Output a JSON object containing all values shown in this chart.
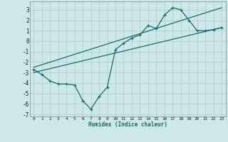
{
  "xlabel": "Humidex (Indice chaleur)",
  "background_color": "#cce8e8",
  "grid_color": "#b0cfcf",
  "line_color": "#1a6b6b",
  "xlim": [
    -0.5,
    23.5
  ],
  "ylim": [
    -7.2,
    3.8
  ],
  "xticks": [
    0,
    1,
    2,
    3,
    4,
    5,
    6,
    7,
    8,
    9,
    10,
    11,
    12,
    13,
    14,
    15,
    16,
    17,
    18,
    19,
    20,
    21,
    22,
    23
  ],
  "yticks": [
    -7,
    -6,
    -5,
    -4,
    -3,
    -2,
    -1,
    0,
    1,
    2,
    3
  ],
  "data_x": [
    0,
    1,
    2,
    3,
    4,
    5,
    6,
    7,
    8,
    9,
    10,
    11,
    12,
    13,
    14,
    15,
    16,
    17,
    18,
    19,
    20,
    21,
    22,
    23
  ],
  "data_y_main": [
    -2.7,
    -3.2,
    -3.8,
    -4.1,
    -4.1,
    -4.2,
    -5.7,
    -6.5,
    -5.3,
    -4.4,
    -0.8,
    -0.2,
    0.3,
    0.6,
    1.5,
    1.2,
    2.5,
    3.2,
    3.0,
    2.0,
    1.0,
    1.0,
    1.1,
    1.3
  ],
  "trend1_x": [
    0,
    23
  ],
  "trend1_y": [
    -3.0,
    1.3
  ],
  "trend2_x": [
    0,
    23
  ],
  "trend2_y": [
    -2.5,
    3.2
  ]
}
